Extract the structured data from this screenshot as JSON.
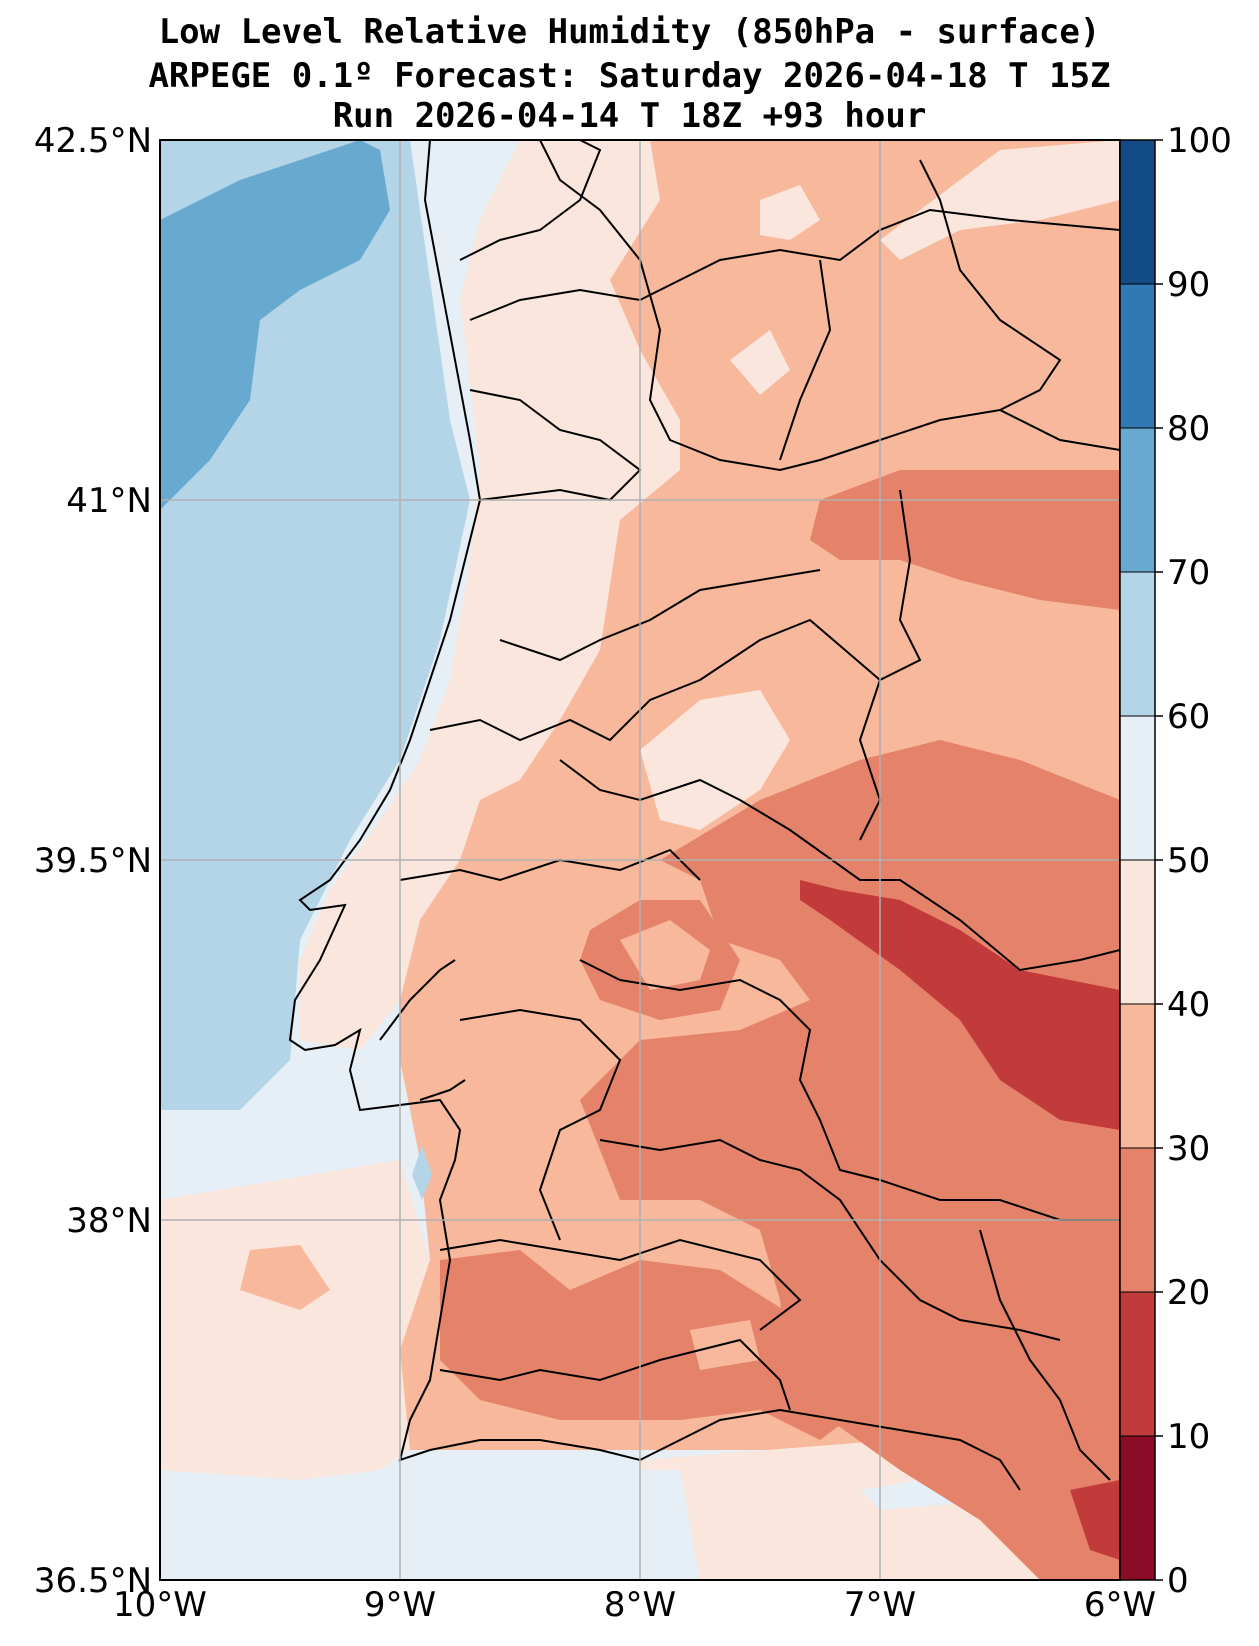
{
  "title": {
    "line1": "Low Level Relative Humidity (850hPa - surface)",
    "line2": "ARPEGE 0.1º Forecast: Saturday 2026-04-18 T 15Z",
    "line3": "Run 2026-04-14 T 18Z +93 hour"
  },
  "map": {
    "lat_range": [
      36.5,
      42.5
    ],
    "lon_range": [
      -10,
      -6
    ],
    "lat_ticks": [
      {
        "value": 42.5,
        "label": "42.5°N"
      },
      {
        "value": 41.0,
        "label": "41°N"
      },
      {
        "value": 39.5,
        "label": "39.5°N"
      },
      {
        "value": 38.0,
        "label": "38°N"
      },
      {
        "value": 36.5,
        "label": "36.5°N"
      }
    ],
    "lon_ticks": [
      {
        "value": -10,
        "label": "10°W"
      },
      {
        "value": -9,
        "label": "9°W"
      },
      {
        "value": -8,
        "label": "8°W"
      },
      {
        "value": -7,
        "label": "7°W"
      },
      {
        "value": -6,
        "label": "6°W"
      }
    ]
  },
  "colorbar": {
    "levels": [
      0,
      10,
      20,
      30,
      40,
      50,
      60,
      70,
      80,
      90,
      100
    ],
    "labels": [
      "0",
      "10",
      "20",
      "30",
      "40",
      "50",
      "60",
      "70",
      "80",
      "90",
      "100"
    ],
    "colors": [
      "#8a0c26",
      "#c23b3b",
      "#e5836a",
      "#f7b89c",
      "#fae6dc",
      "#e6eef6",
      "#b4d5e7",
      "#68a9d0",
      "#2f79b5",
      "#134b87"
    ]
  }
}
